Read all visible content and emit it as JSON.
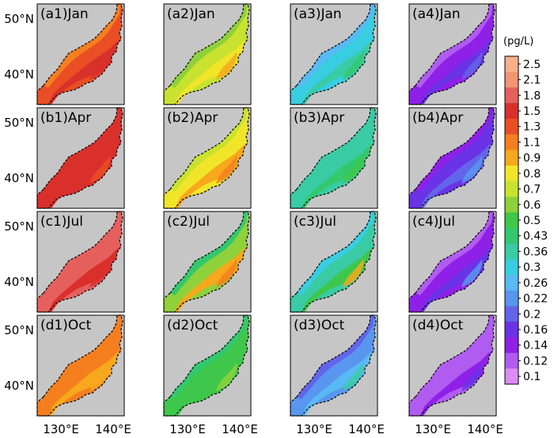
{
  "figure": {
    "rows": [
      {
        "month": "Jan",
        "labels": [
          "(a1)Jan",
          "(a2)Jan",
          "(a3)Jan",
          "(a4)Jan"
        ]
      },
      {
        "month": "Apr",
        "labels": [
          "(b1)Apr",
          "(b2)Apr",
          "(b3)Apr",
          "(b4)Apr"
        ]
      },
      {
        "month": "Jul",
        "labels": [
          "(c1)Jul",
          "(c2)Jul",
          "(c3)Jul",
          "(c4)Jul"
        ]
      },
      {
        "month": "Oct",
        "labels": [
          "(d1)Oct",
          "(d2)Oct",
          "(d3)Oct",
          "(d4)Oct"
        ]
      }
    ],
    "lat_ticks": [
      "50°N",
      "40°N"
    ],
    "lon_ticks": [
      "130°E",
      "140°E"
    ],
    "colorbar": {
      "unit": "(pg/L)",
      "levels": [
        "2.5",
        "2.1",
        "1.8",
        "1.5",
        "1.3",
        "1.1",
        "0.9",
        "0.8",
        "0.7",
        "0.6",
        "0.5",
        "0.43",
        "0.36",
        "0.3",
        "0.26",
        "0.22",
        "0.2",
        "0.16",
        "0.14",
        "0.12",
        "0.1"
      ],
      "colors": [
        "#f7b089",
        "#f39472",
        "#e5605d",
        "#d9302b",
        "#e94e24",
        "#f57f1f",
        "#f7a81c",
        "#f1e52a",
        "#c9e22f",
        "#8fd13a",
        "#3ec74a",
        "#33c86d",
        "#39cba4",
        "#38cde0",
        "#58b9f4",
        "#5896ef",
        "#6265ea",
        "#6a33e6",
        "#8f20e8",
        "#b05cf0",
        "#db8cf5"
      ]
    },
    "ocean_color": "#c6c6c6",
    "panel_color_indices": [
      [
        [
          5,
          4,
          3,
          3
        ],
        [
          9,
          8,
          7,
          6
        ],
        [
          14,
          13,
          12,
          11
        ],
        [
          19,
          18,
          17,
          16
        ]
      ],
      [
        [
          3,
          3,
          3,
          4
        ],
        [
          8,
          7,
          6,
          5
        ],
        [
          12,
          12,
          11,
          10
        ],
        [
          18,
          17,
          16,
          15
        ]
      ],
      [
        [
          2,
          2,
          3,
          3
        ],
        [
          11,
          9,
          6,
          5
        ],
        [
          13,
          12,
          10,
          6
        ],
        [
          19,
          18,
          17,
          15
        ]
      ],
      [
        [
          5,
          5,
          6,
          6
        ],
        [
          11,
          10,
          10,
          9
        ],
        [
          16,
          15,
          14,
          12
        ],
        [
          19,
          19,
          18,
          17
        ]
      ]
    ]
  }
}
